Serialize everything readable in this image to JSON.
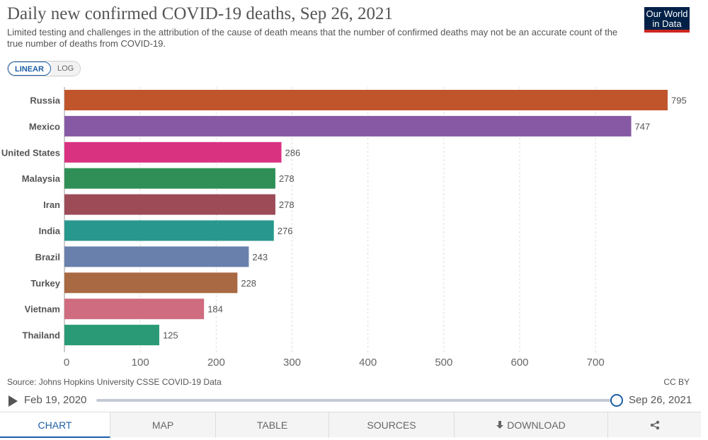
{
  "header": {
    "title": "Daily new confirmed COVID-19 deaths, Sep 26, 2021",
    "subtitle": "Limited testing and challenges in the attribution of the cause of death means that the number of confirmed deaths may not be an accurate count of the true number of deaths from COVID-19.",
    "logo_line1": "Our World",
    "logo_line2": "in Data"
  },
  "scale_toggle": {
    "linear": "LINEAR",
    "log": "LOG",
    "selected": "LINEAR"
  },
  "chart_data": {
    "type": "bar",
    "orientation": "horizontal",
    "categories": [
      "Russia",
      "Mexico",
      "United States",
      "Malaysia",
      "Iran",
      "India",
      "Brazil",
      "Turkey",
      "Vietnam",
      "Thailand"
    ],
    "values": [
      795,
      747,
      286,
      278,
      278,
      276,
      243,
      228,
      184,
      125
    ],
    "value_labels": [
      "795",
      "747",
      "286",
      "278",
      "278",
      "276",
      "243",
      "228",
      "184",
      "125"
    ],
    "colors": [
      "#c0552c",
      "#8759a5",
      "#d93281",
      "#2f8f56",
      "#9c4b57",
      "#28988e",
      "#6a80ac",
      "#a96942",
      "#d06c7f",
      "#2a9a76"
    ],
    "x_ticks": [
      0,
      100,
      200,
      300,
      400,
      500,
      600,
      700
    ],
    "x_tick_labels": [
      "0",
      "100",
      "200",
      "300",
      "400",
      "500",
      "600",
      "700"
    ],
    "xlim": [
      0,
      795
    ],
    "grid": "vertical dashed",
    "title": "Daily new confirmed COVID-19 deaths, Sep 26, 2021",
    "xlabel": "",
    "ylabel": ""
  },
  "footer": {
    "source": "Source: Johns Hopkins University CSSE COVID-19 Data",
    "license": "CC BY"
  },
  "timeline": {
    "start": "Feb 19, 2020",
    "end": "Sep 26, 2021"
  },
  "tabs": [
    {
      "label": "CHART",
      "icon": ""
    },
    {
      "label": "MAP",
      "icon": ""
    },
    {
      "label": "TABLE",
      "icon": ""
    },
    {
      "label": "SOURCES",
      "icon": ""
    },
    {
      "label": "DOWNLOAD",
      "icon": "download-icon"
    },
    {
      "label": "",
      "icon": "share-icon"
    }
  ],
  "colors": {
    "accent": "#1d5fa7",
    "logo_bg": "#002147",
    "logo_bar": "#ce261e"
  }
}
